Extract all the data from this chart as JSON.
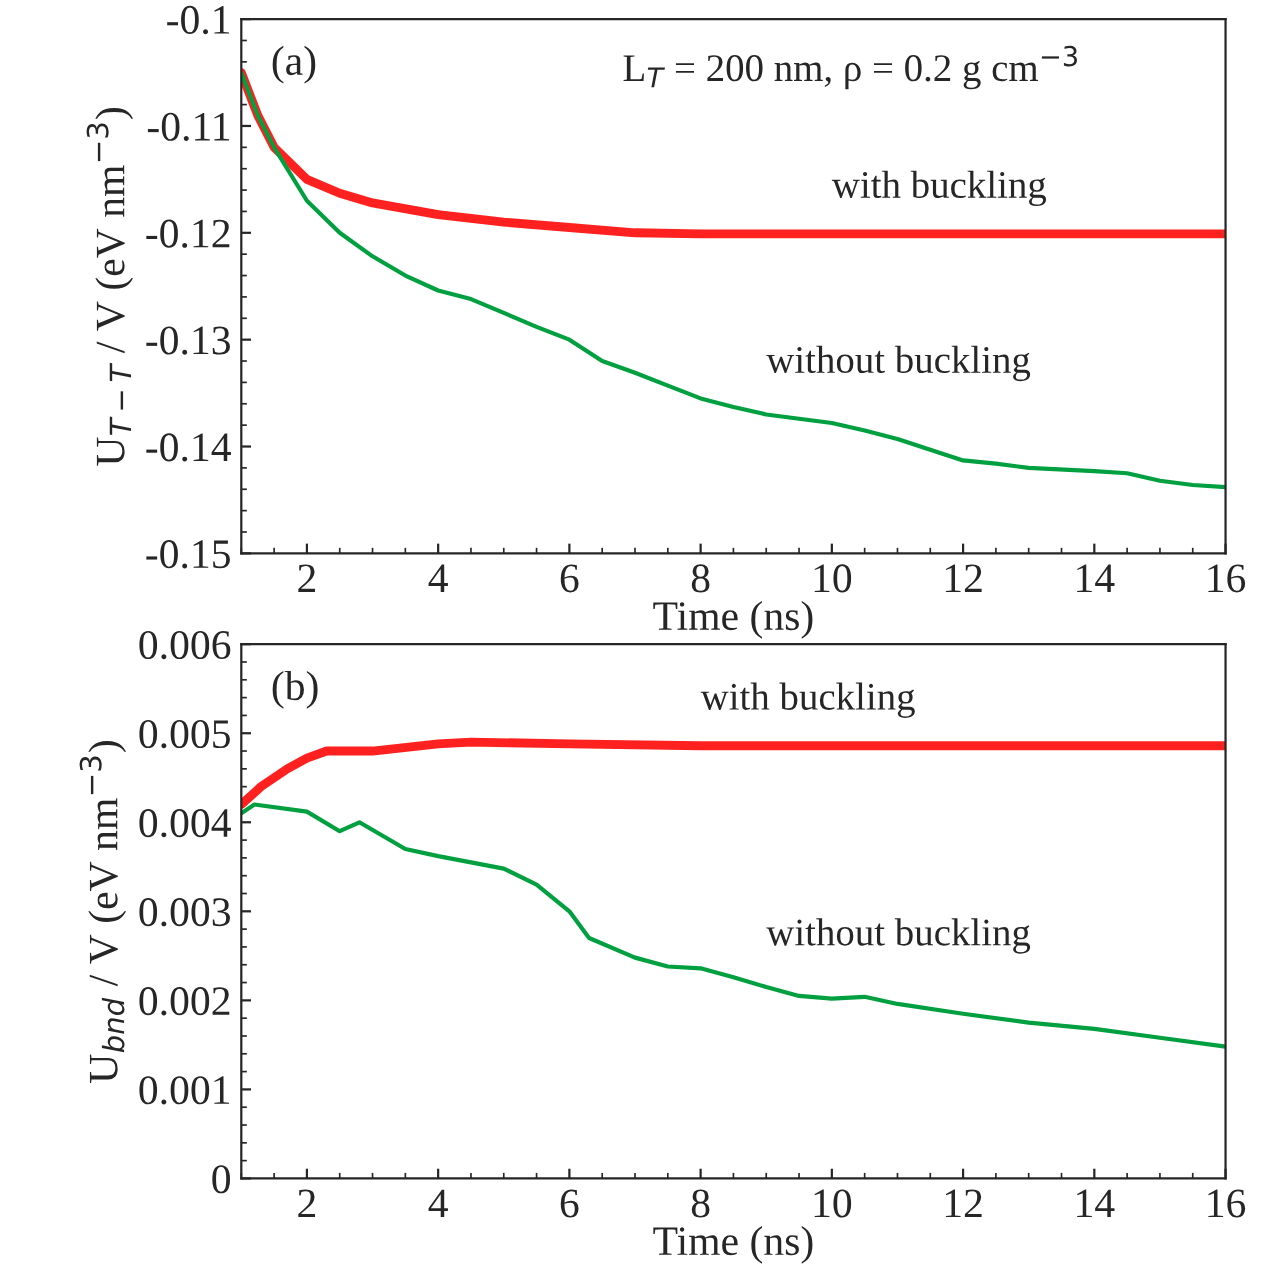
{
  "chart_data": [
    {
      "type": "line",
      "xlabel": "Time (ns)",
      "ylabel": "U$_{T−T}$ / V (eV nm$^{−3}$)",
      "annotations": [
        "(a)",
        "L$_{T}$ = 200 nm, ρ = 0.2 g cm$^{−3}$"
      ],
      "xlim": [
        1,
        16
      ],
      "xticks": [
        2,
        4,
        6,
        8,
        10,
        12,
        14,
        16
      ],
      "ylim": [
        -0.15,
        -0.1
      ],
      "yticks": [
        -0.15,
        -0.14,
        -0.13,
        -0.12,
        -0.11,
        -0.1
      ],
      "grid": false,
      "legend": false,
      "series": [
        {
          "name": "with buckling",
          "color": "#ff2020",
          "x": [
            1,
            1.25,
            1.5,
            2,
            2.5,
            3,
            4,
            5,
            6,
            7,
            8,
            9,
            10,
            12,
            14,
            16
          ],
          "values": [
            -0.105,
            -0.109,
            -0.112,
            -0.115,
            -0.1163,
            -0.1172,
            -0.1183,
            -0.119,
            -0.1195,
            -0.12,
            -0.1201,
            -0.1201,
            -0.1201,
            -0.1201,
            -0.1201,
            -0.1201
          ]
        },
        {
          "name": "without buckling",
          "color": "#00a040",
          "x": [
            1,
            1.25,
            1.5,
            2,
            2.5,
            3,
            3.5,
            4,
            4.5,
            5,
            5.5,
            6,
            6.5,
            7,
            7.5,
            8,
            8.5,
            9,
            9.5,
            10,
            10.5,
            11,
            11.5,
            12,
            12.5,
            13,
            14,
            14.5,
            15,
            15.5,
            16
          ],
          "values": [
            -0.105,
            -0.109,
            -0.112,
            -0.117,
            -0.12,
            -0.1222,
            -0.124,
            -0.1254,
            -0.1262,
            -0.1275,
            -0.1288,
            -0.13,
            -0.132,
            -0.1331,
            -0.1343,
            -0.1355,
            -0.1363,
            -0.137,
            -0.1374,
            -0.1378,
            -0.1385,
            -0.1393,
            -0.1403,
            -0.1413,
            -0.1416,
            -0.142,
            -0.1423,
            -0.1425,
            -0.1432,
            -0.1436,
            -0.1438
          ]
        }
      ]
    },
    {
      "type": "line",
      "xlabel": "Time (ns)",
      "ylabel": "U$_{bnd}$ / V (eV nm$^{−3}$)",
      "annotations": [
        "(b)"
      ],
      "xlim": [
        1,
        16
      ],
      "xticks": [
        2,
        4,
        6,
        8,
        10,
        12,
        14,
        16
      ],
      "ylim": [
        0,
        0.006
      ],
      "yticks": [
        0,
        0.001,
        0.002,
        0.003,
        0.004,
        0.005,
        0.006
      ],
      "grid": false,
      "legend": false,
      "series": [
        {
          "name": "with buckling",
          "color": "#ff2020",
          "x": [
            1,
            1.3,
            1.7,
            2,
            2.3,
            3,
            4,
            4.5,
            6,
            8,
            16
          ],
          "values": [
            0.0042,
            0.0044,
            0.0046,
            0.00472,
            0.0048,
            0.0048,
            0.00488,
            0.0049,
            0.00488,
            0.00486,
            0.00486
          ]
        },
        {
          "name": "without buckling",
          "color": "#00a040",
          "x": [
            1,
            1.2,
            2,
            2.5,
            2.8,
            3.5,
            4,
            5,
            5.5,
            6,
            6.3,
            7,
            7.5,
            8,
            8.5,
            9,
            9.5,
            10,
            10.5,
            11,
            12,
            13,
            14,
            15,
            16
          ],
          "values": [
            0.0041,
            0.0042,
            0.00412,
            0.0039,
            0.004,
            0.0037,
            0.00362,
            0.00348,
            0.0033,
            0.003,
            0.0027,
            0.00248,
            0.00238,
            0.00236,
            0.00226,
            0.00215,
            0.00205,
            0.00202,
            0.00204,
            0.00196,
            0.00185,
            0.00175,
            0.00168,
            0.00158,
            0.00148
          ]
        }
      ]
    }
  ]
}
